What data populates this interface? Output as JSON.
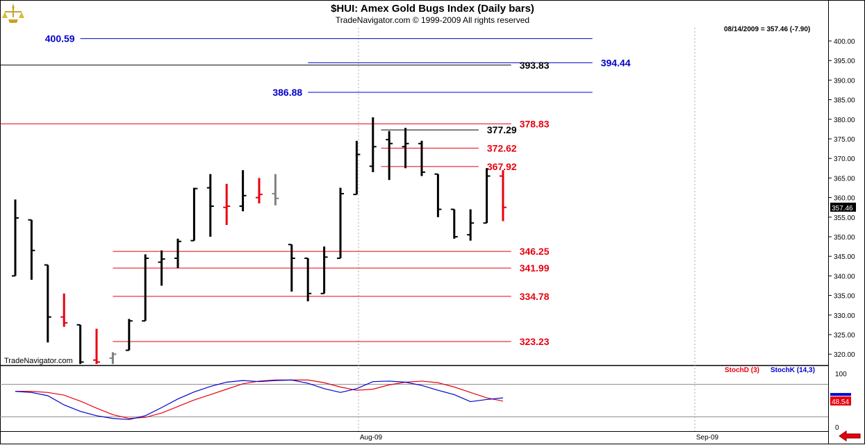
{
  "header": {
    "title": "$HUI:  Amex Gold Bugs Index  (Daily bars)",
    "subtitle": "TradeNavigator.com © 1999-2009 All rights reserved",
    "last_bar": "08/14/2009 = 357.46 (-7.90)",
    "watermark": "TradeNavigator.com"
  },
  "colors": {
    "up_bar": "#000000",
    "down_bar": "#e8000f",
    "neutral_bar": "#808080",
    "blue_level": "#0000cc",
    "red_level": "#e8000f",
    "black_level": "#000000",
    "stoch_d": "#e8000f",
    "stoch_k": "#0000cc"
  },
  "icons": {
    "logo": "trade-navigator-logo-icon",
    "nav": "red-left-arrow-icon"
  },
  "chart_data": [
    {
      "type": "ohlc",
      "title": "$HUI:  Amex Gold Bugs Index  (Daily bars)",
      "x_tick_labels": [
        "Aug-09",
        "Sep-09"
      ],
      "y_tick_labels": [
        "320.00",
        "325.00",
        "330.00",
        "335.00",
        "340.00",
        "345.00",
        "350.00",
        "355.00",
        "360.00",
        "365.00",
        "370.00",
        "375.00",
        "380.00",
        "385.00",
        "390.00",
        "395.00",
        "400.00"
      ],
      "ylim": [
        317.5,
        403.0
      ],
      "last_value_label": "357.46",
      "bars": [
        {
          "o": 340.0,
          "h": 359.5,
          "l": 340.0,
          "c": 354.8,
          "color": "up"
        },
        {
          "o": 354.3,
          "h": 354.3,
          "l": 339.0,
          "c": 346.5,
          "color": "up"
        },
        {
          "o": 342.8,
          "h": 342.8,
          "l": 323.0,
          "c": 329.5,
          "color": "up"
        },
        {
          "o": 329.5,
          "h": 335.5,
          "l": 327.0,
          "c": 328.0,
          "color": "down"
        },
        {
          "o": 327.5,
          "h": 327.5,
          "l": 317.5,
          "c": 318.0,
          "color": "up"
        },
        {
          "o": 318.5,
          "h": 326.5,
          "l": 317.5,
          "c": 318.0,
          "color": "down"
        },
        {
          "o": 319.0,
          "h": 320.5,
          "l": 317.5,
          "c": 320.0,
          "color": "neutral"
        },
        {
          "o": 321.0,
          "h": 329.0,
          "l": 321.0,
          "c": 328.5,
          "color": "up"
        },
        {
          "o": 328.5,
          "h": 345.5,
          "l": 328.5,
          "c": 344.5,
          "color": "up"
        },
        {
          "o": 343.5,
          "h": 346.5,
          "l": 337.5,
          "c": 344.3,
          "color": "up"
        },
        {
          "o": 344.5,
          "h": 349.5,
          "l": 342.0,
          "c": 348.8,
          "color": "up"
        },
        {
          "o": 349.0,
          "h": 362.5,
          "l": 349.0,
          "c": 362.3,
          "color": "up"
        },
        {
          "o": 362.5,
          "h": 366.0,
          "l": 350.0,
          "c": 357.8,
          "color": "up"
        },
        {
          "o": 357.5,
          "h": 363.5,
          "l": 353.0,
          "c": 357.8,
          "color": "down"
        },
        {
          "o": 357.8,
          "h": 367.0,
          "l": 356.5,
          "c": 360.5,
          "color": "up"
        },
        {
          "o": 360.0,
          "h": 365.0,
          "l": 358.5,
          "c": 360.8,
          "color": "down"
        },
        {
          "o": 361.0,
          "h": 366.0,
          "l": 358.0,
          "c": 359.8,
          "color": "neutral"
        },
        {
          "o": 348.0,
          "h": 348.0,
          "l": 336.0,
          "c": 344.5,
          "color": "up"
        },
        {
          "o": 344.5,
          "h": 344.5,
          "l": 333.5,
          "c": 335.5,
          "color": "up"
        },
        {
          "o": 335.5,
          "h": 347.5,
          "l": 335.5,
          "c": 344.8,
          "color": "up"
        },
        {
          "o": 344.5,
          "h": 362.5,
          "l": 344.5,
          "c": 361.0,
          "color": "up"
        },
        {
          "o": 360.8,
          "h": 374.5,
          "l": 360.8,
          "c": 371.0,
          "color": "up"
        },
        {
          "o": 368.0,
          "h": 380.5,
          "l": 366.5,
          "c": 373.0,
          "color": "up"
        },
        {
          "o": 374.8,
          "h": 377.0,
          "l": 364.5,
          "c": 373.8,
          "color": "up"
        },
        {
          "o": 373.0,
          "h": 377.8,
          "l": 367.5,
          "c": 373.8,
          "color": "up"
        },
        {
          "o": 373.8,
          "h": 374.5,
          "l": 365.5,
          "c": 366.5,
          "color": "up"
        },
        {
          "o": 366.0,
          "h": 366.0,
          "l": 355.0,
          "c": 357.0,
          "color": "up"
        },
        {
          "o": 357.0,
          "h": 357.0,
          "l": 349.5,
          "c": 350.0,
          "color": "up"
        },
        {
          "o": 350.5,
          "h": 357.0,
          "l": 349.0,
          "c": 353.5,
          "color": "up"
        },
        {
          "o": 353.5,
          "h": 367.5,
          "l": 353.5,
          "c": 365.5,
          "color": "up"
        },
        {
          "o": 365.5,
          "h": 367.0,
          "l": 354.0,
          "c": 357.5,
          "color": "down"
        }
      ],
      "levels": [
        {
          "value": 400.59,
          "label": "400.59",
          "color": "blue",
          "x_start": 4,
          "x_end": 35.5,
          "label_side": "left"
        },
        {
          "value": 394.44,
          "label": "394.44",
          "color": "blue",
          "x_start": 18.0,
          "x_end": 35.5,
          "label_side": "right"
        },
        {
          "value": 393.83,
          "label": "393.83",
          "color": "black",
          "x_start": -1.0,
          "x_end": 30.5,
          "label_side": "right"
        },
        {
          "value": 386.88,
          "label": "386.88",
          "color": "blue",
          "x_start": 18.0,
          "x_end": 35.5,
          "label_side": "left"
        },
        {
          "value": 378.83,
          "label": "378.83",
          "color": "red",
          "x_start": -1.0,
          "x_end": 30.5,
          "label_side": "right"
        },
        {
          "value": 377.29,
          "label": "377.29",
          "color": "black",
          "x_start": 22.5,
          "x_end": 28.5,
          "label_side": "right"
        },
        {
          "value": 372.62,
          "label": "372.62",
          "color": "red",
          "x_start": 22.5,
          "x_end": 28.5,
          "label_side": "right"
        },
        {
          "value": 367.92,
          "label": "367.92",
          "color": "red",
          "x_start": 22.5,
          "x_end": 28.5,
          "label_side": "right"
        },
        {
          "value": 346.25,
          "label": "346.25",
          "color": "red",
          "x_start": 6.0,
          "x_end": 30.5,
          "label_side": "right"
        },
        {
          "value": 341.99,
          "label": "341.99",
          "color": "red",
          "x_start": 6.0,
          "x_end": 30.5,
          "label_side": "right"
        },
        {
          "value": 334.78,
          "label": "334.78",
          "color": "red",
          "x_start": 6.0,
          "x_end": 30.5,
          "label_side": "right"
        },
        {
          "value": 323.23,
          "label": "323.23",
          "color": "red",
          "x_start": 6.0,
          "x_end": 30.5,
          "label_side": "right"
        }
      ]
    },
    {
      "type": "line",
      "title": "",
      "legend": [
        "StochD (3)",
        "StochK (14,3)"
      ],
      "y_tick_labels": [
        "100",
        "0"
      ],
      "ylim": [
        0,
        100
      ],
      "reference_lines": [
        80,
        20
      ],
      "last_value_label": "48.54",
      "series": [
        {
          "name": "StochD (3)",
          "color": "red",
          "values": [
            67,
            67,
            65,
            60,
            49,
            36,
            24,
            17,
            19,
            27,
            39,
            51,
            61,
            71,
            81,
            86,
            88,
            88,
            88,
            83,
            75,
            69,
            71,
            79,
            84,
            86,
            83,
            75,
            65,
            55,
            49
          ]
        },
        {
          "name": "StochK (14,3)",
          "color": "blue",
          "values": [
            67,
            65,
            59,
            42,
            30,
            22,
            17,
            15,
            22,
            37,
            53,
            66,
            76,
            84,
            87,
            85,
            87,
            88,
            82,
            72,
            65,
            72,
            85,
            86,
            84,
            78,
            69,
            61,
            48,
            52,
            55
          ]
        }
      ]
    }
  ]
}
